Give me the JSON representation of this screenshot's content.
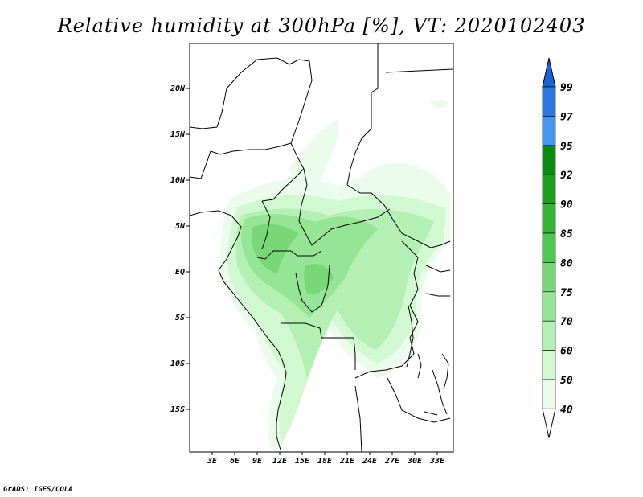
{
  "title": "Relative humidity at 300hPa [%], VT: 2020102403",
  "credit": "GrADS: IGES/COLA",
  "map": {
    "lon_range": [
      0,
      35
    ],
    "lat_range": [
      -20,
      24
    ],
    "lat_ticks": [
      "20N",
      "15N",
      "10N",
      "5N",
      "EQ",
      "5S",
      "10S",
      "15S"
    ],
    "lon_ticks": [
      "3E",
      "6E",
      "9E",
      "12E",
      "15E",
      "18E",
      "21E",
      "24E",
      "27E",
      "30E",
      "33E"
    ],
    "variable": "relative humidity",
    "level": "300hPa"
  },
  "colorbar": {
    "levels": [
      "99",
      "97",
      "95",
      "92",
      "90",
      "85",
      "80",
      "75",
      "70",
      "60",
      "50",
      "40"
    ],
    "colors": {
      "above_99": "#1c64d2",
      "97_99": "#2d78e0",
      "95_97": "#4696f0",
      "92_95": "#0a8c14",
      "90_92": "#1ea01e",
      "85_90": "#36b436",
      "80_85": "#50c850",
      "75_80": "#78d878",
      "70_75": "#96e496",
      "60_70": "#b4f0b4",
      "50_60": "#d2f8d2",
      "40_50": "#ecfcec",
      "below_40": "#ffffff"
    }
  }
}
